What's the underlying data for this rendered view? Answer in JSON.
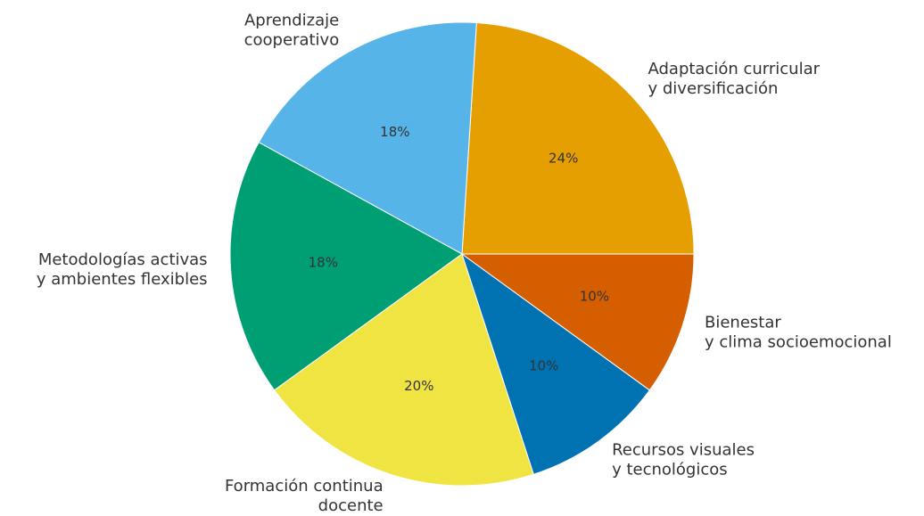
{
  "chart_data": {
    "type": "pie",
    "categories": [
      "Adaptación curricular\ny diversificación",
      "Aprendizaje\ncooperativo",
      "Metodologías activas\ny ambientes flexibles",
      "Formación continua\ndocente",
      "Recursos visuales\ny tecnológicos",
      "Bienestar\ny clima socioemocional"
    ],
    "values": [
      24,
      18,
      18,
      20,
      10,
      10
    ],
    "value_labels": [
      "24%",
      "18%",
      "18%",
      "20%",
      "10%",
      "10%"
    ],
    "colors": [
      "#E69F00",
      "#56B4E9",
      "#009E73",
      "#F0E442",
      "#0072B2",
      "#D55E00"
    ]
  }
}
